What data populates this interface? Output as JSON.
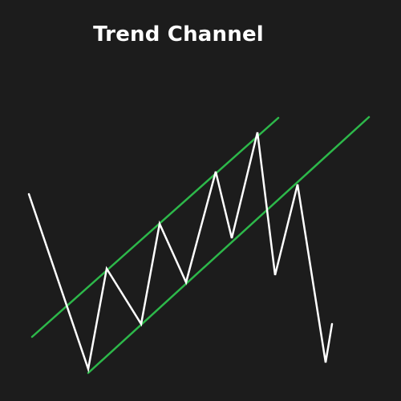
{
  "title": "Trend Channel",
  "colors": {
    "background": "#1c1c1c",
    "title": "#ffffff",
    "channel_lines": "#2db84a",
    "price_line": "#ffffff"
  },
  "diagram": {
    "elements": [
      "upper-channel-line",
      "lower-channel-line",
      "price-zigzag-line"
    ]
  }
}
